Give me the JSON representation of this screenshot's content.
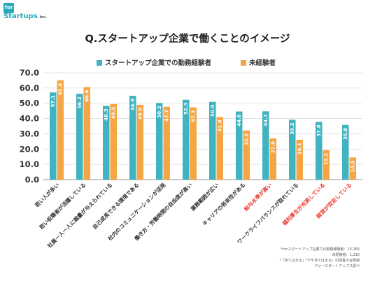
{
  "brand": {
    "top": "for",
    "name": "Startups",
    "suffix": ".Inc."
  },
  "chart_data": {
    "type": "bar",
    "title": "Q.スタートアップ企業で働くことのイメージ",
    "categories": [
      "若い人が多い",
      "若い役職者が活躍している",
      "社員一人一人に裁量が与えられている",
      "自己成長できる環境である",
      "社内のコミュニケーションが活発",
      "働き方・労働時間の自由度が高い",
      "業務範囲が広い",
      "キャリアの将来性がある",
      "給与水準が高い",
      "ワークライフバランスが取れている",
      "福利厚生が充実している",
      "経営が安定している"
    ],
    "highlight_categories": [
      "給与水準が高い",
      "福利厚生が充実している",
      "経営が安定している"
    ],
    "series": [
      {
        "name": "スタートアップ企業での勤務経験者",
        "color": "#3fb3c0",
        "values": [
          57.1,
          56.2,
          48.3,
          54.9,
          50.2,
          52.3,
          50.9,
          44.6,
          44.7,
          39.2,
          37.8,
          35.8
        ],
        "labels": [
          "57.1",
          "56.2",
          "48.3",
          "54.9",
          "50.2",
          "52.3",
          "50.9",
          "44.6",
          "44.7",
          "39.2",
          "37.8",
          "35.8"
        ]
      },
      {
        "name": "未経験者",
        "color": "#f5a543",
        "values": [
          65.0,
          60.6,
          49.5,
          49.0,
          47.7,
          47.3,
          41.0,
          32.2,
          27.0,
          26.1,
          19.3,
          14.5
        ],
        "labels": [
          "65.0",
          "60.6",
          "49.5",
          "49.0",
          "47.7",
          "47.3",
          "41.0",
          "32.2",
          "27.0",
          "26.1",
          "19.3",
          "14.5"
        ]
      }
    ],
    "ylim": [
      0,
      70
    ],
    "yticks": [
      "0.0",
      "10.0",
      "20.0",
      "30.0",
      "40.0",
      "50.0",
      "60.0",
      "70.0"
    ],
    "grid": true,
    "legend_position": "top",
    "label_color": "#333333",
    "highlight_color": "#e8392f"
  },
  "notes": [
    "*n=スタートアップ企業での勤務経験者：13,165",
    "未経験者：1,210",
    "*「あてはまる」「ややあてはまる」の回答の合算値",
    "フォースタートアップス調べ"
  ]
}
